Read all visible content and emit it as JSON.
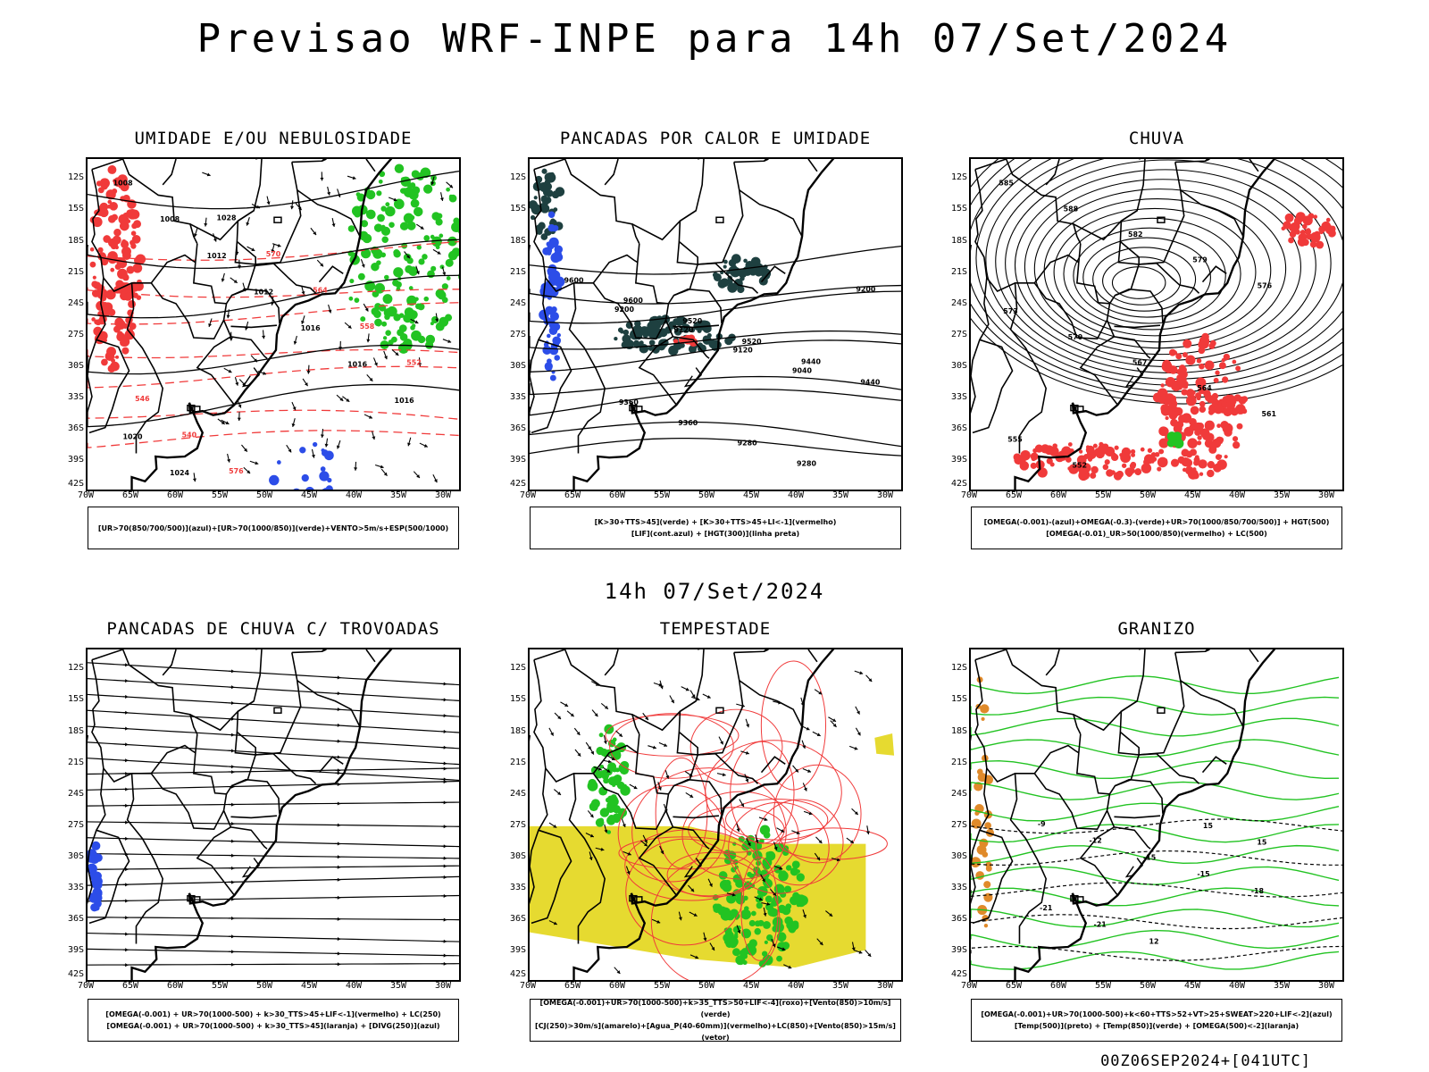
{
  "title": "Previsao WRF-INPE  para 14h 07/Set/2024",
  "mid_title": "14h 07/Set/2024",
  "footer": "00Z06SEP2024+[041UTC]",
  "lat_labels": [
    "12S",
    "15S",
    "18S",
    "21S",
    "24S",
    "27S",
    "30S",
    "33S",
    "36S",
    "39S",
    "42S"
  ],
  "lon_labels": [
    "70W",
    "65W",
    "60W",
    "55W",
    "50W",
    "45W",
    "40W",
    "35W",
    "30W"
  ],
  "panels": [
    {
      "title": "UMIDADE E/OU NEBULOSIDADE",
      "legend": [
        "[UR>70(850/700/500)](azul)+[UR>70(1000/850)](verde)+VENTO>5m/s+ESP(500/1000)"
      ],
      "contour_labels": [
        "1008",
        "1008",
        "1012",
        "1012",
        "1016",
        "1016",
        "1016",
        "1020",
        "1024",
        "1028",
        "570",
        "564",
        "558",
        "552",
        "546",
        "540",
        "576"
      ]
    },
    {
      "title": "PANCADAS POR CALOR E UMIDADE",
      "legend": [
        "[K>30+TTS>45](verde) + [K>30+TTS>45+LI<-1](vermelho)",
        "[LIF](cont.azul) + [HGT(300)](linha preta)"
      ],
      "contour_labels": [
        "9600",
        "9600",
        "9520",
        "9520",
        "9440",
        "9440",
        "9360",
        "9360",
        "9280",
        "9280",
        "9200",
        "9200",
        "9120",
        "9120",
        "9040"
      ]
    },
    {
      "title": "CHUVA",
      "legend": [
        "[OMEGA(-0.001)-(azul)+OMEGA(-0.3)-(verde)+UR>70(1000/850/700/500)] + HGT(500)",
        "[OMEGA(-0.01)_UR>50(1000/850)(vermelho) + LC(500)"
      ],
      "contour_labels": [
        "585",
        "588",
        "582",
        "579",
        "576",
        "573",
        "570",
        "567",
        "564",
        "561",
        "555",
        "552"
      ]
    },
    {
      "title": "PANCADAS DE CHUVA C/ TROVOADAS",
      "legend": [
        "[OMEGA(-0.001) + UR>70(1000-500) + k>30_TTS>45+LIF<-1](vermelho) + LC(250)",
        "[OMEGA(-0.001) + UR>70(1000-500) + k>30_TTS>45](laranja) + [DIVG(250)](azul)"
      ],
      "contour_labels": []
    },
    {
      "title": "TEMPESTADE",
      "legend": [
        "[OMEGA(-0.001)+UR>70(1000-500)+k>35_TTS>50+LIF<-4](roxo)+[Vento(850)>10m/s](verde)",
        "[CJ(250)>30m/s](amarelo)+[Agua_P(40-60mm)](vermelho)+LC(850)+[Vento(850)>15m/s](vetor)"
      ],
      "contour_labels": []
    },
    {
      "title": "GRANIZO",
      "legend": [
        "[OMEGA(-0.001)+UR>70(1000-500)+k<60+TTS>52+VT>25+SWEAT>220+LIF<-2](azul)",
        "[Temp(500)](preto) + [Temp(850)](verde) + [OMEGA(500)<-2](laranja)"
      ],
      "contour_labels": [
        "-9",
        "-12",
        "-15",
        "-15",
        "-18",
        "-21",
        "-21",
        "12",
        "15",
        "15"
      ]
    }
  ],
  "colors": {
    "black": "#000000",
    "red": "#f03a3a",
    "green": "#22c322",
    "blue": "#2c4de8",
    "dark_teal": "#1e4040",
    "yellow": "#e6da30",
    "orange": "#e08a2a"
  }
}
